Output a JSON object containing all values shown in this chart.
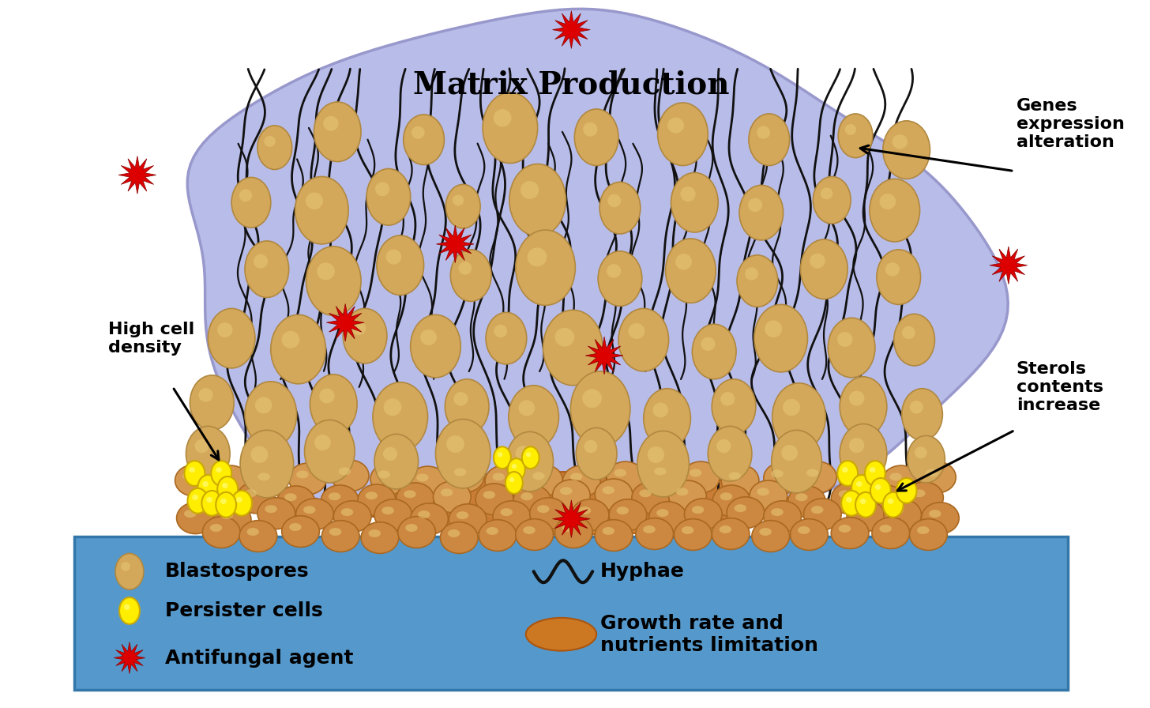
{
  "bg_color": "#ffffff",
  "biofilm_blob_color": "#b8bce8",
  "biofilm_blob_edge": "#9898cc",
  "surface_color": "#5599cc",
  "surface_edge": "#3377aa",
  "blastospore_face": "#d4a85a",
  "blastospore_edge": "#b08840",
  "blastospore_highlight": "#e8c878",
  "bottom_spore_face": "#cc8840",
  "bottom_spore_edge": "#aa6820",
  "persister_face": "#ffee00",
  "persister_edge": "#ccaa00",
  "nutrient_face": "#cc7722",
  "nutrient_edge": "#aa5510",
  "antifungal_color": "#dd0000",
  "hyphae_color": "#111111",
  "title": "Matrix Production",
  "label_high_cell": "High cell\ndensity",
  "label_genes": "Genes\nexpression\nalteration",
  "label_sterols": "Sterols\ncontents\nincrease",
  "legend_blastospores": "Blastospores",
  "legend_hyphae": "Hyphae",
  "legend_persister": "Persister cells",
  "legend_growth": "Growth rate and\nnutrients limitation",
  "legend_antifungal": "Antifungal agent"
}
